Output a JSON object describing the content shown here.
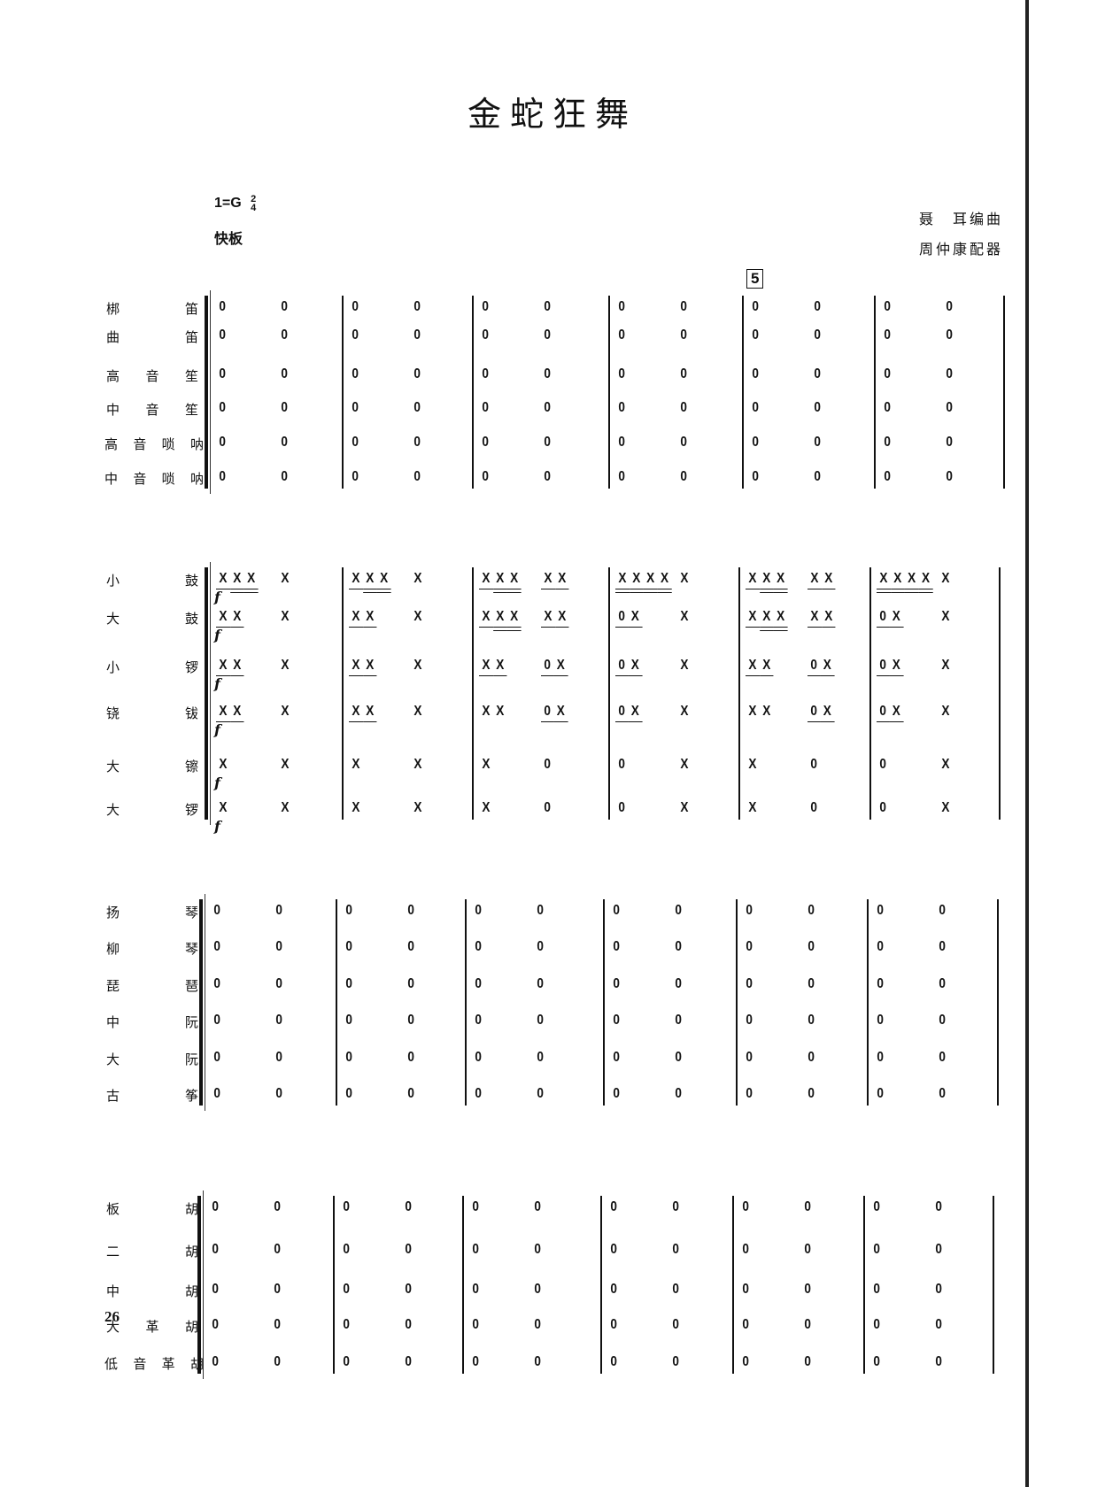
{
  "title": "金蛇狂舞",
  "key": "1=G",
  "time_signature": {
    "numerator": "2",
    "denominator": "4"
  },
  "tempo": "快板",
  "credits": {
    "composer": "聂　耳编曲",
    "arranger": "周仲康配器"
  },
  "rehearsal_mark": "5",
  "page_number": "26",
  "groups": [
    {
      "name": "winds",
      "rows": [
        {
          "instrument": "梆　笛",
          "pattern": "rest"
        },
        {
          "instrument": "曲　笛",
          "pattern": "rest"
        },
        {
          "instrument": "高音笙",
          "pattern": "rest"
        },
        {
          "instrument": "中音笙",
          "pattern": "rest"
        },
        {
          "instrument": "高音唢呐",
          "pattern": "rest"
        },
        {
          "instrument": "中音唢呐",
          "pattern": "rest"
        }
      ]
    },
    {
      "name": "percussion",
      "dynamic": "f",
      "rows": [
        {
          "instrument": "小　鼓",
          "measures": [
            [
              [
                [
                  "X",
                  1
                ],
                [
                  "X",
                  2
                ],
                [
                  "X",
                  2
                ]
              ],
              [
                [
                  "X",
                  0
                ]
              ]
            ],
            [
              [
                [
                  "X",
                  1
                ],
                [
                  "X",
                  2
                ],
                [
                  "X",
                  2
                ]
              ],
              [
                [
                  "X",
                  0
                ]
              ]
            ],
            [
              [
                [
                  "X",
                  1
                ],
                [
                  "X",
                  2
                ],
                [
                  "X",
                  2
                ]
              ],
              [
                [
                  "X",
                  1
                ],
                [
                  "X",
                  1
                ]
              ]
            ],
            [
              [
                [
                  "X",
                  2
                ],
                [
                  "X",
                  2
                ],
                [
                  "X",
                  2
                ],
                [
                  "X",
                  2
                ]
              ],
              [
                [
                  "X",
                  0
                ]
              ]
            ],
            [
              [
                [
                  "X",
                  1
                ],
                [
                  "X",
                  2
                ],
                [
                  "X",
                  2
                ]
              ],
              [
                [
                  "X",
                  1
                ],
                [
                  "X",
                  1
                ]
              ]
            ],
            [
              [
                [
                  "X",
                  2
                ],
                [
                  "X",
                  2
                ],
                [
                  "X",
                  2
                ],
                [
                  "X",
                  2
                ]
              ],
              [
                [
                  "X",
                  0
                ]
              ]
            ]
          ]
        },
        {
          "instrument": "大　鼓",
          "measures": [
            [
              [
                [
                  "X",
                  1
                ],
                [
                  "X",
                  1
                ]
              ],
              [
                [
                  "X",
                  0
                ]
              ]
            ],
            [
              [
                [
                  "X",
                  1
                ],
                [
                  "X",
                  1
                ]
              ],
              [
                [
                  "X",
                  0
                ]
              ]
            ],
            [
              [
                [
                  "X",
                  1
                ],
                [
                  "X",
                  2
                ],
                [
                  "X",
                  2
                ]
              ],
              [
                [
                  "X",
                  1
                ],
                [
                  "X",
                  1
                ]
              ]
            ],
            [
              [
                [
                  "0",
                  1
                ],
                [
                  "X",
                  1
                ]
              ],
              [
                [
                  "X",
                  0
                ]
              ]
            ],
            [
              [
                [
                  "X",
                  1
                ],
                [
                  "X",
                  2
                ],
                [
                  "X",
                  2
                ]
              ],
              [
                [
                  "X",
                  1
                ],
                [
                  "X",
                  1
                ]
              ]
            ],
            [
              [
                [
                  "0",
                  1
                ],
                [
                  "X",
                  1
                ]
              ],
              [
                [
                  "X",
                  0
                ]
              ]
            ]
          ]
        },
        {
          "instrument": "小　锣",
          "measures": [
            [
              [
                [
                  "X",
                  1
                ],
                [
                  "X",
                  1
                ]
              ],
              [
                [
                  "X",
                  0
                ]
              ]
            ],
            [
              [
                [
                  "X",
                  1
                ],
                [
                  "X",
                  1
                ]
              ],
              [
                [
                  "X",
                  0
                ]
              ]
            ],
            [
              [
                [
                  "X",
                  1
                ],
                [
                  "X",
                  1
                ]
              ],
              [
                [
                  "0",
                  1
                ],
                [
                  "X",
                  1
                ]
              ]
            ],
            [
              [
                [
                  "0",
                  1
                ],
                [
                  "X",
                  1
                ]
              ],
              [
                [
                  "X",
                  0
                ]
              ]
            ],
            [
              [
                [
                  "X",
                  1
                ],
                [
                  "X",
                  1
                ]
              ],
              [
                [
                  "0",
                  1
                ],
                [
                  "X",
                  1
                ]
              ]
            ],
            [
              [
                [
                  "0",
                  1
                ],
                [
                  "X",
                  1
                ]
              ],
              [
                [
                  "X",
                  0
                ]
              ]
            ]
          ]
        },
        {
          "instrument": "铙　钹",
          "measures": [
            [
              [
                [
                  "X",
                  1
                ],
                [
                  "X",
                  1
                ]
              ],
              [
                [
                  "X",
                  0
                ]
              ]
            ],
            [
              [
                [
                  "X",
                  1
                ],
                [
                  "X",
                  1
                ]
              ],
              [
                [
                  "X",
                  0
                ]
              ]
            ],
            [
              [
                [
                  "X",
                  0
                ],
                [
                  "X",
                  0
                ]
              ],
              [
                [
                  "0",
                  1
                ],
                [
                  "X",
                  1
                ]
              ]
            ],
            [
              [
                [
                  "0",
                  1
                ],
                [
                  "X",
                  1
                ]
              ],
              [
                [
                  "X",
                  0
                ]
              ]
            ],
            [
              [
                [
                  "X",
                  0
                ],
                [
                  "X",
                  0
                ]
              ],
              [
                [
                  "0",
                  1
                ],
                [
                  "X",
                  1
                ]
              ]
            ],
            [
              [
                [
                  "0",
                  1
                ],
                [
                  "X",
                  1
                ]
              ],
              [
                [
                  "X",
                  0
                ]
              ]
            ]
          ]
        },
        {
          "instrument": "大　镲",
          "measures": [
            [
              [
                [
                  "X",
                  0
                ]
              ],
              [
                [
                  "X",
                  0
                ]
              ]
            ],
            [
              [
                [
                  "X",
                  0
                ]
              ],
              [
                [
                  "X",
                  0
                ]
              ]
            ],
            [
              [
                [
                  "X",
                  0
                ]
              ],
              [
                [
                  "0",
                  0
                ]
              ]
            ],
            [
              [
                [
                  "0",
                  0
                ]
              ],
              [
                [
                  "X",
                  0
                ]
              ]
            ],
            [
              [
                [
                  "X",
                  0
                ]
              ],
              [
                [
                  "0",
                  0
                ]
              ]
            ],
            [
              [
                [
                  "0",
                  0
                ]
              ],
              [
                [
                  "X",
                  0
                ]
              ]
            ]
          ]
        },
        {
          "instrument": "大　锣",
          "measures": [
            [
              [
                [
                  "X",
                  0
                ]
              ],
              [
                [
                  "X",
                  0
                ]
              ]
            ],
            [
              [
                [
                  "X",
                  0
                ]
              ],
              [
                [
                  "X",
                  0
                ]
              ]
            ],
            [
              [
                [
                  "X",
                  0
                ]
              ],
              [
                [
                  "0",
                  0
                ]
              ]
            ],
            [
              [
                [
                  "0",
                  0
                ]
              ],
              [
                [
                  "X",
                  0
                ]
              ]
            ],
            [
              [
                [
                  "X",
                  0
                ]
              ],
              [
                [
                  "0",
                  0
                ]
              ]
            ],
            [
              [
                [
                  "0",
                  0
                ]
              ],
              [
                [
                  "X",
                  0
                ]
              ]
            ]
          ]
        }
      ]
    },
    {
      "name": "plucked-strings",
      "rows": [
        {
          "instrument": "扬　琴",
          "pattern": "rest"
        },
        {
          "instrument": "柳　琴",
          "pattern": "rest"
        },
        {
          "instrument": "琵　琶",
          "pattern": "rest"
        },
        {
          "instrument": "中　阮",
          "pattern": "rest"
        },
        {
          "instrument": "大　阮",
          "pattern": "rest"
        },
        {
          "instrument": "古　筝",
          "pattern": "rest"
        }
      ]
    },
    {
      "name": "bowed-strings",
      "rows": [
        {
          "instrument": "板　胡",
          "pattern": "rest"
        },
        {
          "instrument": "二　胡",
          "pattern": "rest"
        },
        {
          "instrument": "中　胡",
          "pattern": "rest"
        },
        {
          "instrument": "大革胡",
          "pattern": "rest"
        },
        {
          "instrument": "低音革胡",
          "pattern": "rest"
        }
      ]
    }
  ],
  "rest_symbol": "0",
  "measure_count": 6
}
